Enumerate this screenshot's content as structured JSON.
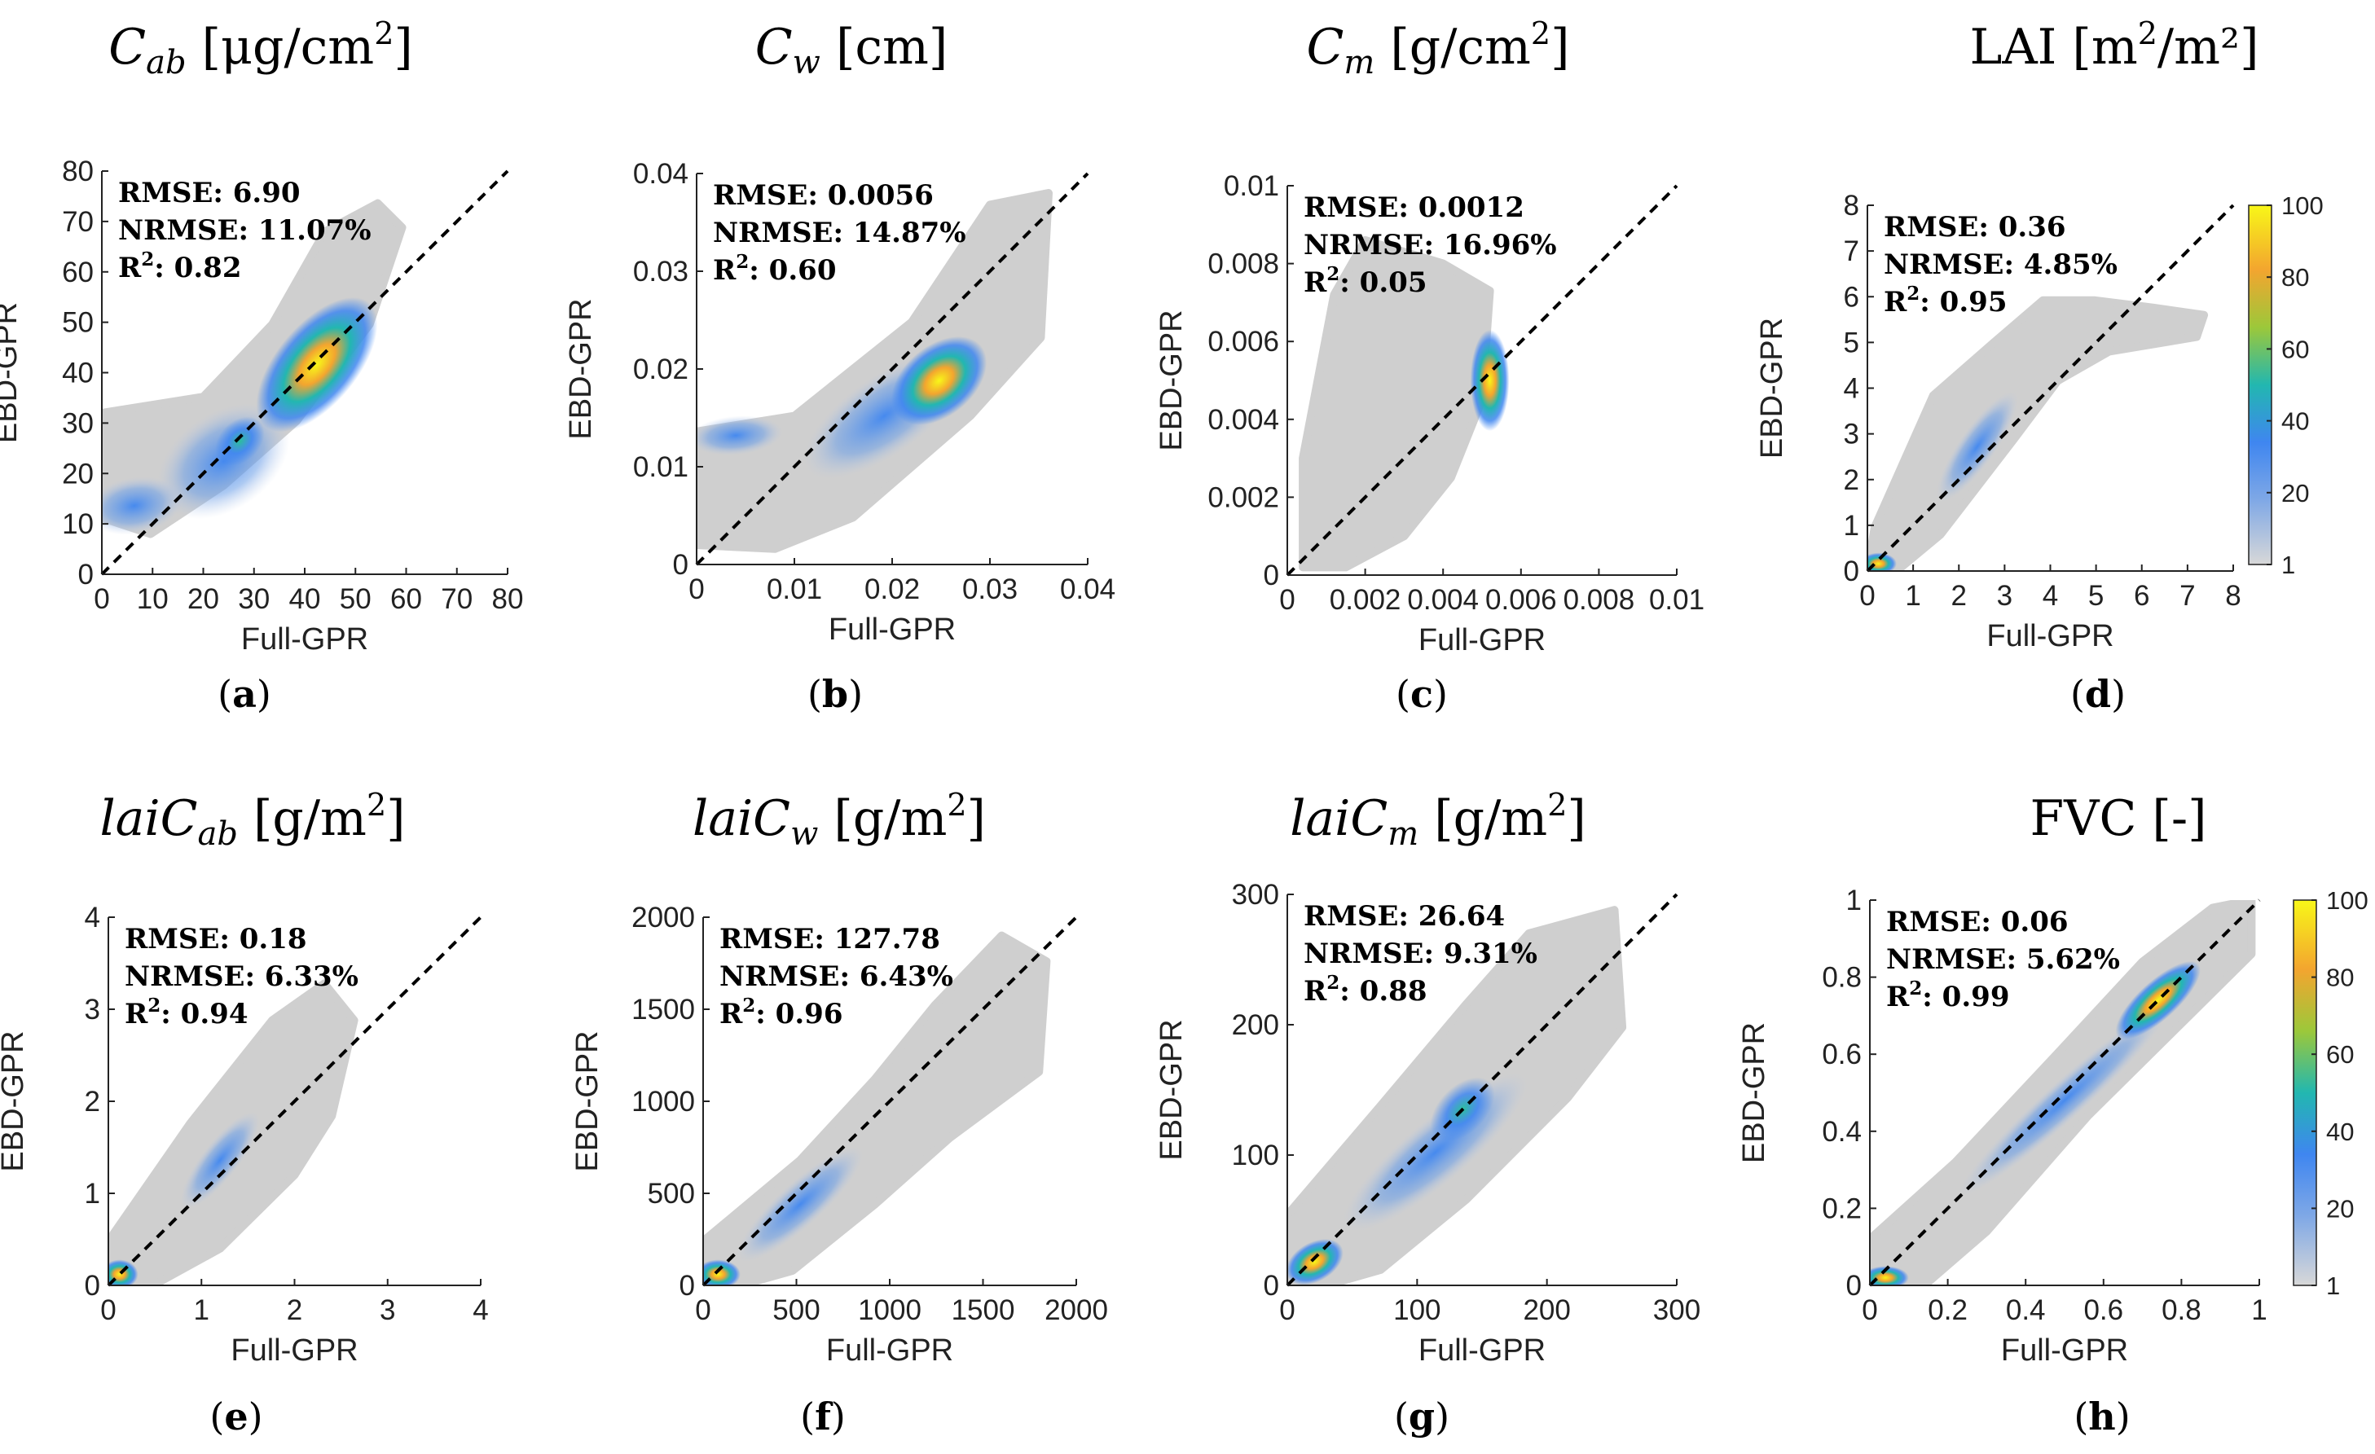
{
  "figure": {
    "xlabel": "Full-GPR",
    "ylabel": "EBD-GPR",
    "colorbar_ticks": [
      "100",
      "80",
      "60",
      "40",
      "20",
      "1"
    ],
    "colormap": [
      "#d8d8d8",
      "#3f86f0",
      "#22b7b0",
      "#9cc83a",
      "#f3a52f",
      "#f8f718"
    ]
  },
  "chart_data": [
    {
      "type": "scatter",
      "letter": "a",
      "title": {
        "main": "C",
        "sub": "ab",
        "unit": " [μg/cm",
        "sup": "2",
        "close": "]"
      },
      "xlim": [
        0,
        80
      ],
      "ylim": [
        0,
        80
      ],
      "xticks": [
        "0",
        "10",
        "20",
        "30",
        "40",
        "50",
        "60",
        "70",
        "80"
      ],
      "yticks": [
        "0",
        "10",
        "20",
        "30",
        "40",
        "50",
        "60",
        "70",
        "80"
      ],
      "stats": {
        "rmse": "RMSE: 6.90",
        "nrmse": "NRMSE: 11.07%",
        "r2": "0.82"
      },
      "one_to_one": true,
      "colorbar": false
    },
    {
      "type": "scatter",
      "letter": "b",
      "title": {
        "main": "C",
        "sub": "w",
        "unit": " [cm]",
        "sup": "",
        "close": ""
      },
      "xlim": [
        0,
        0.04
      ],
      "ylim": [
        0,
        0.04
      ],
      "xticks": [
        "0",
        "0.01",
        "0.02",
        "0.03",
        "0.04"
      ],
      "yticks": [
        "0",
        "0.01",
        "0.02",
        "0.03",
        "0.04"
      ],
      "stats": {
        "rmse": "RMSE: 0.0056",
        "nrmse": "NRMSE: 14.87%",
        "r2": "0.60"
      },
      "one_to_one": true,
      "colorbar": false
    },
    {
      "type": "scatter",
      "letter": "c",
      "title": {
        "main": "C",
        "sub": "m",
        "unit": " [g/cm",
        "sup": "2",
        "close": "]"
      },
      "xlim": [
        0,
        0.01
      ],
      "ylim": [
        0,
        0.01
      ],
      "xticks": [
        "0",
        "0.002",
        "0.004",
        "0.006",
        "0.008",
        "0.01"
      ],
      "yticks": [
        "0",
        "0.002",
        "0.004",
        "0.006",
        "0.008",
        "0.01"
      ],
      "stats": {
        "rmse": "RMSE: 0.0012",
        "nrmse": "NRMSE: 16.96%",
        "r2": "0.05"
      },
      "one_to_one": true,
      "colorbar": false
    },
    {
      "type": "scatter",
      "letter": "d",
      "title": {
        "main": "",
        "sub": "",
        "unit": "LAI [m",
        "sup": "2",
        "close": "/m²]"
      },
      "xlim": [
        0,
        8
      ],
      "ylim": [
        0,
        8
      ],
      "xticks": [
        "0",
        "1",
        "2",
        "3",
        "4",
        "5",
        "6",
        "7",
        "8"
      ],
      "yticks": [
        "0",
        "1",
        "2",
        "3",
        "4",
        "5",
        "6",
        "7",
        "8"
      ],
      "stats": {
        "rmse": "RMSE: 0.36",
        "nrmse": "NRMSE: 4.85%",
        "r2": "0.95"
      },
      "one_to_one": true,
      "colorbar": true
    },
    {
      "type": "scatter",
      "letter": "e",
      "title": {
        "main": "laiC",
        "sub": "ab",
        "unit": " [g/m",
        "sup": "2",
        "close": "]"
      },
      "xlim": [
        0,
        4
      ],
      "ylim": [
        0,
        4
      ],
      "xticks": [
        "0",
        "1",
        "2",
        "3",
        "4"
      ],
      "yticks": [
        "0",
        "1",
        "2",
        "3",
        "4"
      ],
      "stats": {
        "rmse": "RMSE: 0.18",
        "nrmse": "NRMSE: 6.33%",
        "r2": "0.94"
      },
      "one_to_one": true,
      "colorbar": false
    },
    {
      "type": "scatter",
      "letter": "f",
      "title": {
        "main": "laiC",
        "sub": "w",
        "unit": " [g/m",
        "sup": "2",
        "close": "]"
      },
      "xlim": [
        0,
        2000
      ],
      "ylim": [
        0,
        2000
      ],
      "xticks": [
        "0",
        "500",
        "1000",
        "1500",
        "2000"
      ],
      "yticks": [
        "0",
        "500",
        "1000",
        "1500",
        "2000"
      ],
      "stats": {
        "rmse": "RMSE: 127.78",
        "nrmse": "NRMSE: 6.43%",
        "r2": "0.96"
      },
      "one_to_one": true,
      "colorbar": false
    },
    {
      "type": "scatter",
      "letter": "g",
      "title": {
        "main": "laiC",
        "sub": "m",
        "unit": " [g/m",
        "sup": "2",
        "close": "]"
      },
      "xlim": [
        0,
        300
      ],
      "ylim": [
        0,
        300
      ],
      "xticks": [
        "0",
        "100",
        "200",
        "300"
      ],
      "yticks": [
        "0",
        "100",
        "200",
        "300"
      ],
      "stats": {
        "rmse": "RMSE: 26.64",
        "nrmse": "NRMSE: 9.31%",
        "r2": "0.88"
      },
      "one_to_one": true,
      "colorbar": false
    },
    {
      "type": "scatter",
      "letter": "h",
      "title": {
        "main": "",
        "sub": "",
        "unit": "FVC [-]",
        "sup": "",
        "close": ""
      },
      "xlim": [
        0,
        1
      ],
      "ylim": [
        0,
        1
      ],
      "xticks": [
        "0",
        "0.2",
        "0.4",
        "0.6",
        "0.8",
        "1"
      ],
      "yticks": [
        "0",
        "0.2",
        "0.4",
        "0.6",
        "0.8",
        "1"
      ],
      "stats": {
        "rmse": "RMSE: 0.06",
        "nrmse": "NRMSE: 5.62%",
        "r2": "0.99"
      },
      "one_to_one": true,
      "colorbar": true
    }
  ]
}
